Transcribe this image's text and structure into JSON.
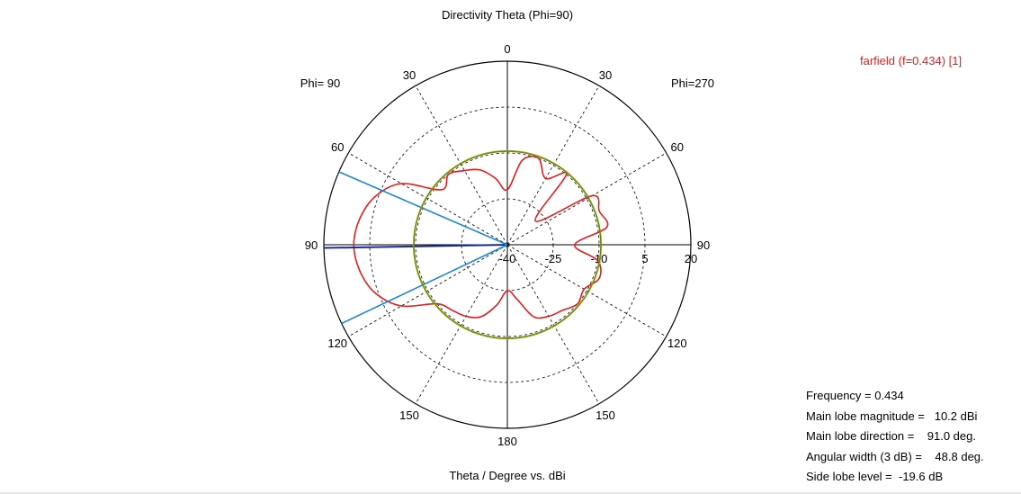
{
  "chart_data": {
    "type": "polar",
    "title": "Directivity Theta (Phi=90)",
    "xlabel": "Theta / Degree vs. dBi",
    "left_label": "Phi= 90",
    "right_label": "Phi=270",
    "angle_labels": [
      {
        "text": "0",
        "angle": 0
      },
      {
        "text": "30",
        "angle": 30
      },
      {
        "text": "60",
        "angle": 60
      },
      {
        "text": "90",
        "angle": 90
      },
      {
        "text": "120",
        "angle": 120
      },
      {
        "text": "150",
        "angle": 150
      },
      {
        "text": "180",
        "angle": 180
      },
      {
        "text": "150",
        "angle": 210
      },
      {
        "text": "120",
        "angle": 240
      },
      {
        "text": "90",
        "angle": 270
      },
      {
        "text": "60",
        "angle": 300
      },
      {
        "text": "30",
        "angle": 330
      }
    ],
    "radial_ticks": [
      "-40",
      "-25",
      "-10",
      "5",
      "20"
    ],
    "rlim": [
      -40,
      20
    ],
    "grid": true,
    "series": [
      {
        "name": "farfield (f=0.434) [1]",
        "color": "#e31d1d",
        "theta_deg": [
          0,
          10,
          20,
          30,
          40,
          50,
          60,
          70,
          80,
          90,
          100,
          110,
          120,
          130,
          140,
          150,
          160,
          170,
          180,
          190,
          200,
          210,
          220,
          230,
          240,
          250,
          260,
          270,
          280,
          290,
          300,
          310,
          320,
          330,
          340,
          350,
          360
        ],
        "dbi": [
          -22,
          -18,
          -14,
          -12,
          -10,
          -12,
          0,
          6,
          9,
          10.2,
          9,
          6,
          0,
          -10,
          -12,
          -13,
          -15,
          -20,
          -25,
          -22,
          -15,
          -13,
          -12,
          -10,
          -11,
          -8,
          -10,
          -18,
          -7,
          -8,
          -8,
          -28,
          -10,
          -15,
          -10,
          -12,
          -22
        ]
      },
      {
        "name": "main-lobe-direction",
        "color": "#1b2e8f",
        "theta_deg": [
          91
        ],
        "dbi": [
          20
        ]
      },
      {
        "name": "3dB-beamwidth",
        "color": "#1a86d8",
        "theta_deg": [
          66.6,
          115.4
        ],
        "dbi": [
          20,
          20
        ]
      },
      {
        "name": "side-lobe-level",
        "color": "#6b8a14",
        "theta_deg": [
          0
        ],
        "dbi": [
          -9.4
        ]
      }
    ]
  },
  "legend": {
    "label": "farfield (f=0.434) [1]"
  },
  "info": {
    "frequency": "Frequency = 0.434",
    "main_lobe_magnitude": "Main lobe magnitude =   10.2 dBi",
    "main_lobe_direction": "Main lobe direction =    91.0 deg.",
    "angular_width": "Angular width (3 dB) =    48.8 deg.",
    "side_lobe_level": "Side lobe level =  -19.6 dB"
  }
}
